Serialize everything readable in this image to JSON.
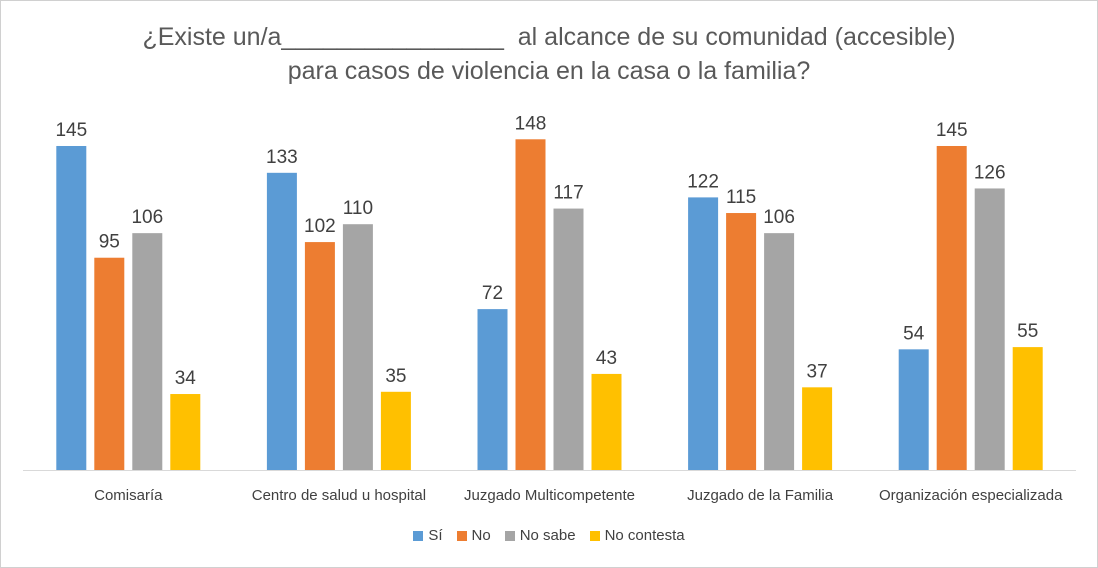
{
  "chart_data": {
    "type": "bar",
    "title_lines": [
      "¿Existe un/a________________  al alcance de su comunidad (accesible)",
      "para casos de violencia en la casa o la familia?"
    ],
    "categories": [
      "Comisaría",
      "Centro de salud u hospital",
      "Juzgado Multicompetente",
      "Juzgado de la Familia",
      "Organización especializada"
    ],
    "series": [
      {
        "name": "Sí",
        "color": "#5B9BD5",
        "values": [
          145,
          133,
          72,
          122,
          54
        ]
      },
      {
        "name": "No",
        "color": "#ED7D31",
        "values": [
          95,
          102,
          148,
          115,
          145
        ]
      },
      {
        "name": "No sabe",
        "color": "#A5A5A5",
        "values": [
          106,
          110,
          117,
          106,
          126
        ]
      },
      {
        "name": "No contesta",
        "color": "#FFC000",
        "values": [
          34,
          35,
          43,
          37,
          55
        ]
      }
    ],
    "ylim": [
      0,
      148
    ],
    "grid": false,
    "data_labels": true,
    "legend_position": "bottom",
    "xlabel": "",
    "ylabel": ""
  }
}
